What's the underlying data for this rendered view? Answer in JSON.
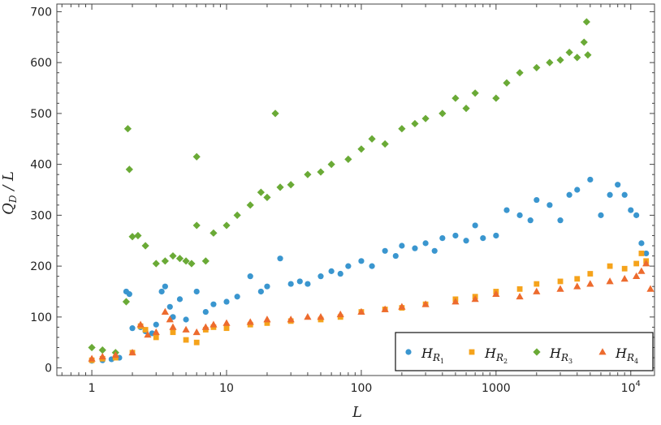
{
  "chart_data": {
    "type": "scatter",
    "title": "",
    "xlabel": "L",
    "ylabel": "Q_D / L",
    "xscale": "log",
    "xlim": [
      0.55,
      15000
    ],
    "ylim": [
      -15,
      715
    ],
    "x_ticks": [
      {
        "value": 1,
        "label": "1"
      },
      {
        "value": 10,
        "label": "10"
      },
      {
        "value": 100,
        "label": "100"
      },
      {
        "value": 1000,
        "label": "1000"
      },
      {
        "value": 10000,
        "label": "10",
        "sup": "4"
      }
    ],
    "y_ticks": [
      {
        "value": 0,
        "label": "0"
      },
      {
        "value": 100,
        "label": "100"
      },
      {
        "value": 200,
        "label": "200"
      },
      {
        "value": 300,
        "label": "300"
      },
      {
        "value": 400,
        "label": "400"
      },
      {
        "value": 500,
        "label": "500"
      },
      {
        "value": 600,
        "label": "600"
      },
      {
        "value": 700,
        "label": "700"
      }
    ],
    "legend_position": "bottom-right",
    "series": [
      {
        "name": "H_R1",
        "label_main": "H",
        "label_sub": "R",
        "label_subsub": "1",
        "marker": "circle",
        "color": "#3a96cf",
        "points": [
          [
            1,
            14
          ],
          [
            1.2,
            15
          ],
          [
            1.4,
            17
          ],
          [
            1.6,
            20
          ],
          [
            1.8,
            150
          ],
          [
            1.9,
            145
          ],
          [
            2.0,
            78
          ],
          [
            2.3,
            80
          ],
          [
            2.5,
            72
          ],
          [
            2.8,
            68
          ],
          [
            3.0,
            85
          ],
          [
            3.3,
            150
          ],
          [
            3.5,
            160
          ],
          [
            3.8,
            120
          ],
          [
            4.0,
            100
          ],
          [
            4.5,
            135
          ],
          [
            5.0,
            95
          ],
          [
            6.0,
            150
          ],
          [
            7,
            110
          ],
          [
            8,
            125
          ],
          [
            10,
            130
          ],
          [
            12,
            140
          ],
          [
            15,
            180
          ],
          [
            18,
            150
          ],
          [
            20,
            160
          ],
          [
            25,
            215
          ],
          [
            30,
            165
          ],
          [
            35,
            170
          ],
          [
            40,
            165
          ],
          [
            50,
            180
          ],
          [
            60,
            190
          ],
          [
            70,
            185
          ],
          [
            80,
            200
          ],
          [
            100,
            210
          ],
          [
            120,
            200
          ],
          [
            150,
            230
          ],
          [
            180,
            220
          ],
          [
            200,
            240
          ],
          [
            250,
            235
          ],
          [
            300,
            245
          ],
          [
            350,
            230
          ],
          [
            400,
            255
          ],
          [
            500,
            260
          ],
          [
            600,
            250
          ],
          [
            700,
            280
          ],
          [
            800,
            255
          ],
          [
            1000,
            260
          ],
          [
            1200,
            310
          ],
          [
            1500,
            300
          ],
          [
            1800,
            290
          ],
          [
            2000,
            330
          ],
          [
            2500,
            320
          ],
          [
            3000,
            290
          ],
          [
            3500,
            340
          ],
          [
            4000,
            350
          ],
          [
            5000,
            370
          ],
          [
            6000,
            300
          ],
          [
            7000,
            340
          ],
          [
            8000,
            360
          ],
          [
            9000,
            340
          ],
          [
            10000,
            310
          ],
          [
            11000,
            300
          ],
          [
            12000,
            245
          ],
          [
            13000,
            225
          ]
        ]
      },
      {
        "name": "H_R2",
        "label_main": "H",
        "label_sub": "R",
        "label_subsub": "2",
        "marker": "square",
        "color": "#f5a31b",
        "points": [
          [
            1,
            15
          ],
          [
            1.2,
            18
          ],
          [
            1.5,
            20
          ],
          [
            2.0,
            30
          ],
          [
            2.3,
            82
          ],
          [
            2.5,
            75
          ],
          [
            3.0,
            60
          ],
          [
            4.0,
            70
          ],
          [
            5.0,
            55
          ],
          [
            6.0,
            50
          ],
          [
            7,
            75
          ],
          [
            8,
            80
          ],
          [
            10,
            78
          ],
          [
            15,
            85
          ],
          [
            20,
            88
          ],
          [
            30,
            92
          ],
          [
            50,
            95
          ],
          [
            70,
            100
          ],
          [
            100,
            110
          ],
          [
            150,
            115
          ],
          [
            200,
            118
          ],
          [
            300,
            125
          ],
          [
            500,
            135
          ],
          [
            700,
            140
          ],
          [
            1000,
            150
          ],
          [
            1500,
            155
          ],
          [
            2000,
            165
          ],
          [
            3000,
            170
          ],
          [
            4000,
            175
          ],
          [
            5000,
            185
          ],
          [
            7000,
            200
          ],
          [
            9000,
            195
          ],
          [
            11000,
            205
          ],
          [
            12000,
            225
          ],
          [
            13000,
            210
          ]
        ]
      },
      {
        "name": "H_R3",
        "label_main": "H",
        "label_sub": "R",
        "label_subsub": "3",
        "marker": "diamond",
        "color": "#6aaa36",
        "points": [
          [
            1,
            40
          ],
          [
            1.2,
            35
          ],
          [
            1.5,
            30
          ],
          [
            1.8,
            130
          ],
          [
            1.85,
            470
          ],
          [
            1.9,
            390
          ],
          [
            2.0,
            258
          ],
          [
            2.2,
            260
          ],
          [
            2.5,
            240
          ],
          [
            3.0,
            205
          ],
          [
            3.5,
            210
          ],
          [
            4.0,
            220
          ],
          [
            4.5,
            215
          ],
          [
            5.0,
            210
          ],
          [
            5.5,
            205
          ],
          [
            6.0,
            415
          ],
          [
            6.0,
            280
          ],
          [
            7,
            210
          ],
          [
            8,
            265
          ],
          [
            10,
            280
          ],
          [
            12,
            300
          ],
          [
            15,
            320
          ],
          [
            18,
            345
          ],
          [
            20,
            335
          ],
          [
            23,
            500
          ],
          [
            25,
            355
          ],
          [
            30,
            360
          ],
          [
            40,
            380
          ],
          [
            50,
            385
          ],
          [
            60,
            400
          ],
          [
            80,
            410
          ],
          [
            100,
            430
          ],
          [
            120,
            450
          ],
          [
            150,
            440
          ],
          [
            200,
            470
          ],
          [
            250,
            480
          ],
          [
            300,
            490
          ],
          [
            400,
            500
          ],
          [
            500,
            530
          ],
          [
            600,
            510
          ],
          [
            700,
            540
          ],
          [
            1000,
            530
          ],
          [
            1200,
            560
          ],
          [
            1500,
            580
          ],
          [
            2000,
            590
          ],
          [
            2500,
            600
          ],
          [
            3000,
            605
          ],
          [
            3500,
            620
          ],
          [
            4000,
            610
          ],
          [
            4500,
            640
          ],
          [
            4700,
            680
          ],
          [
            4800,
            615
          ]
        ]
      },
      {
        "name": "H_R4",
        "label_main": "H",
        "label_sub": "R",
        "label_subsub": "4",
        "marker": "triangle",
        "color": "#ed6b2e",
        "points": [
          [
            1,
            18
          ],
          [
            1.2,
            22
          ],
          [
            1.5,
            25
          ],
          [
            2.0,
            30
          ],
          [
            2.3,
            85
          ],
          [
            2.6,
            65
          ],
          [
            3.0,
            70
          ],
          [
            3.5,
            110
          ],
          [
            3.8,
            95
          ],
          [
            4.0,
            80
          ],
          [
            5.0,
            75
          ],
          [
            6.0,
            70
          ],
          [
            7,
            80
          ],
          [
            8,
            85
          ],
          [
            10,
            88
          ],
          [
            15,
            90
          ],
          [
            20,
            95
          ],
          [
            30,
            95
          ],
          [
            40,
            100
          ],
          [
            50,
            100
          ],
          [
            70,
            105
          ],
          [
            100,
            110
          ],
          [
            150,
            115
          ],
          [
            200,
            120
          ],
          [
            300,
            125
          ],
          [
            500,
            130
          ],
          [
            700,
            135
          ],
          [
            1000,
            145
          ],
          [
            1500,
            140
          ],
          [
            2000,
            150
          ],
          [
            3000,
            155
          ],
          [
            4000,
            160
          ],
          [
            5000,
            165
          ],
          [
            7000,
            170
          ],
          [
            9000,
            175
          ],
          [
            11000,
            180
          ],
          [
            12000,
            190
          ],
          [
            13000,
            205
          ],
          [
            14000,
            155
          ]
        ]
      }
    ]
  }
}
